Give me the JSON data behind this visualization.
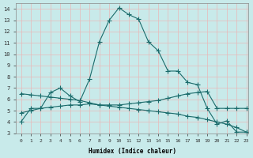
{
  "xlabel": "Humidex (Indice chaleur)",
  "ylabel": "",
  "bg_color": "#c8eaea",
  "grid_color": "#e8b8b8",
  "line_color": "#1a6b6b",
  "xlim": [
    -0.5,
    23.2
  ],
  "ylim": [
    3,
    14.5
  ],
  "xticks": [
    0,
    1,
    2,
    3,
    4,
    5,
    6,
    7,
    8,
    9,
    10,
    11,
    12,
    13,
    14,
    15,
    16,
    17,
    18,
    19,
    20,
    21,
    22,
    23
  ],
  "yticks": [
    3,
    4,
    5,
    6,
    7,
    8,
    9,
    10,
    11,
    12,
    13,
    14
  ],
  "series1_x": [
    0,
    1,
    2,
    3,
    4,
    5,
    6,
    7,
    8,
    9,
    10,
    11,
    12,
    13,
    14,
    15,
    16,
    17,
    18,
    19,
    20,
    21,
    22,
    23
  ],
  "series1_y": [
    4.0,
    5.2,
    5.2,
    6.6,
    7.0,
    6.3,
    5.8,
    7.8,
    11.1,
    13.0,
    14.1,
    13.5,
    13.1,
    11.1,
    10.3,
    8.5,
    8.5,
    7.5,
    7.3,
    5.2,
    3.8,
    4.1,
    3.1,
    3.1
  ],
  "series2_x": [
    0,
    1,
    2,
    3,
    4,
    5,
    6,
    7,
    8,
    9,
    10,
    11,
    12,
    13,
    14,
    15,
    16,
    17,
    18,
    19,
    20,
    21,
    22,
    23
  ],
  "series2_y": [
    4.8,
    5.0,
    5.2,
    5.3,
    5.4,
    5.5,
    5.5,
    5.6,
    5.5,
    5.5,
    5.5,
    5.6,
    5.7,
    5.8,
    5.9,
    6.1,
    6.3,
    6.5,
    6.6,
    6.7,
    5.2,
    5.2,
    5.2,
    5.2
  ],
  "series3_x": [
    0,
    1,
    2,
    3,
    4,
    5,
    6,
    7,
    8,
    9,
    10,
    11,
    12,
    13,
    14,
    15,
    16,
    17,
    18,
    19,
    20,
    21,
    22,
    23
  ],
  "series3_y": [
    6.5,
    6.4,
    6.3,
    6.2,
    6.1,
    6.0,
    5.9,
    5.7,
    5.5,
    5.4,
    5.3,
    5.2,
    5.1,
    5.0,
    4.9,
    4.8,
    4.7,
    4.5,
    4.4,
    4.2,
    4.0,
    3.8,
    3.5,
    3.1
  ]
}
